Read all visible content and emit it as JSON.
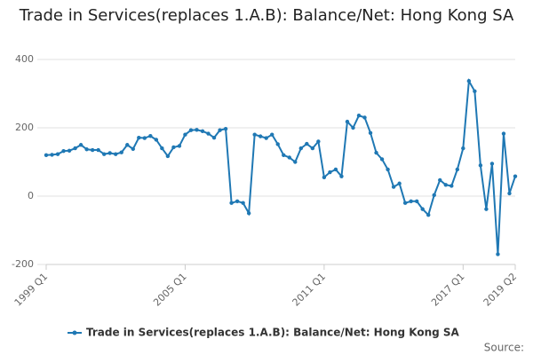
{
  "chart_data": {
    "type": "line",
    "title": "Trade in Services(replaces 1.A.B): Balance/Net: Hong Kong SA",
    "source": "Source:",
    "categories": [
      "1999 Q1",
      null,
      null,
      null,
      null,
      null,
      null,
      null,
      null,
      null,
      null,
      null,
      null,
      null,
      null,
      null,
      null,
      null,
      null,
      null,
      null,
      null,
      null,
      null,
      "2005 Q1",
      null,
      null,
      null,
      null,
      null,
      null,
      null,
      null,
      null,
      null,
      null,
      null,
      null,
      null,
      null,
      null,
      null,
      null,
      null,
      null,
      null,
      null,
      null,
      "2011 Q1",
      null,
      null,
      null,
      null,
      null,
      null,
      null,
      null,
      null,
      null,
      null,
      null,
      null,
      null,
      null,
      null,
      null,
      null,
      null,
      null,
      null,
      null,
      null,
      "2017 Q1",
      null,
      null,
      null,
      null,
      null,
      null,
      null,
      null,
      "2019 Q2"
    ],
    "series": [
      {
        "name": "Trade in Services(replaces 1.A.B): Balance/Net: Hong Kong SA",
        "color": "#1f78b4",
        "values": [
          120,
          121,
          123,
          132,
          133,
          140,
          150,
          137,
          135,
          135,
          123,
          126,
          123,
          128,
          150,
          138,
          171,
          170,
          176,
          165,
          140,
          117,
          143,
          147,
          180,
          193,
          194,
          190,
          183,
          171,
          193,
          197,
          -20,
          -15,
          -20,
          -50,
          180,
          175,
          170,
          180,
          152,
          120,
          113,
          100,
          140,
          153,
          140,
          160,
          55,
          70,
          78,
          58,
          218,
          200,
          236,
          230,
          185,
          127,
          108,
          78,
          27,
          37,
          -20,
          -15,
          -15,
          -38,
          -55,
          3,
          47,
          33,
          30,
          78,
          140,
          337,
          307,
          90,
          -38,
          95,
          -170,
          183,
          8,
          58
        ]
      }
    ],
    "ylim": [
      -200,
      400
    ],
    "yticks": [
      -200,
      0,
      200,
      400
    ],
    "grid": true
  }
}
